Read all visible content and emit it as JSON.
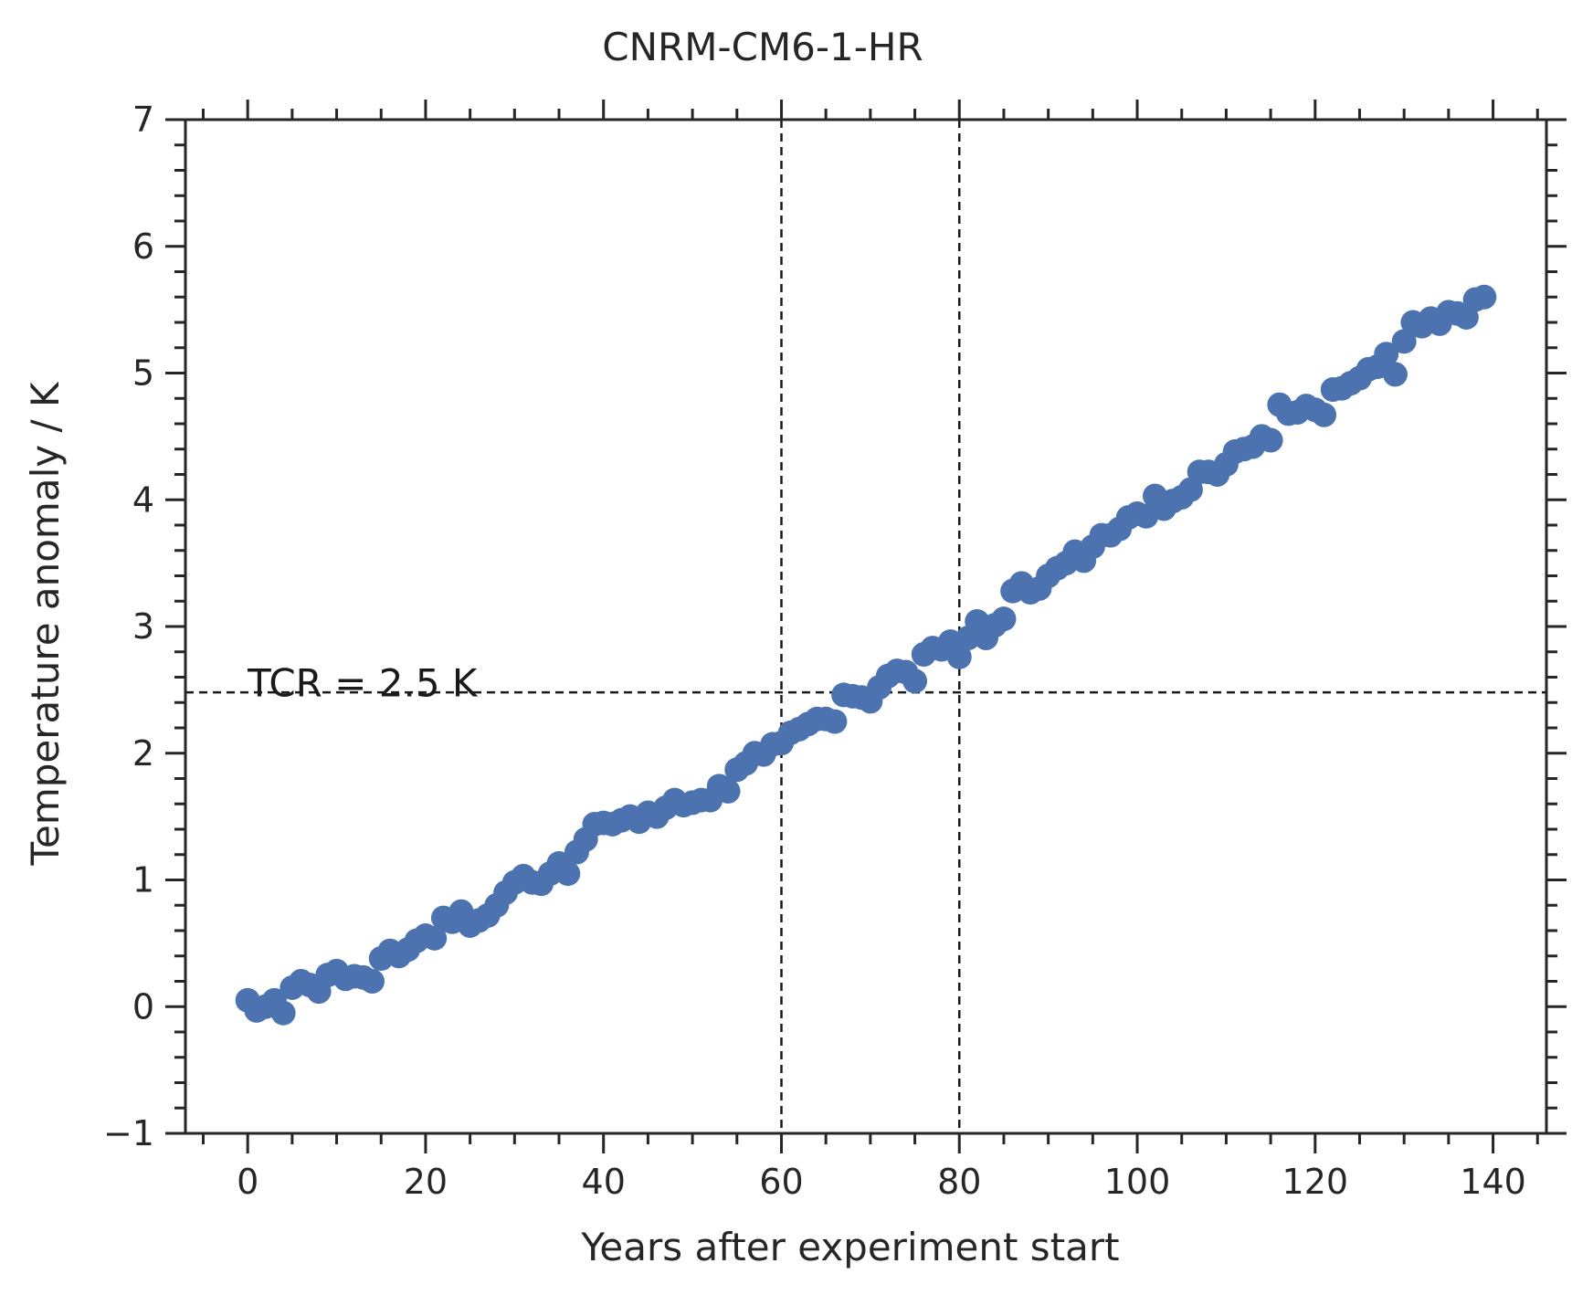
{
  "chart_data": {
    "type": "scatter",
    "title": "CNRM-CM6-1-HR",
    "xlabel": "Years after experiment start",
    "ylabel": "Temperature anomaly / K",
    "xlim": [
      -7,
      146
    ],
    "ylim": [
      -1,
      7
    ],
    "xticks": [
      0,
      20,
      40,
      60,
      80,
      100,
      120,
      140
    ],
    "xtick_labels": [
      "0",
      "20",
      "40",
      "60",
      "80",
      "100",
      "120",
      "140"
    ],
    "yticks": [
      -1,
      0,
      1,
      2,
      3,
      4,
      5,
      6,
      7
    ],
    "ytick_labels": [
      "−1",
      "0",
      "1",
      "2",
      "3",
      "4",
      "5",
      "6",
      "7"
    ],
    "grid": false,
    "marker_color": "#4c72b0",
    "reference_lines": {
      "vertical": [
        60,
        80
      ],
      "horizontal": [
        2.48
      ],
      "color": "#1a1a1a",
      "style": "dashed"
    },
    "annotation": {
      "text": "TCR = 2.5 K",
      "x": 0,
      "y": 2.55
    },
    "series": [
      {
        "x": [
          0,
          1,
          2,
          3,
          4,
          5,
          6,
          7,
          8,
          9,
          10,
          11,
          12,
          13,
          14,
          15,
          16,
          17,
          18,
          19,
          20,
          21,
          22,
          23,
          24,
          25,
          26,
          27,
          28,
          29,
          30,
          31,
          32,
          33,
          34,
          35,
          36,
          37,
          38,
          39,
          40,
          41,
          42,
          43,
          44,
          45,
          46,
          47,
          48,
          49,
          50,
          51,
          52,
          53,
          54,
          55,
          56,
          57,
          58,
          59,
          60,
          61,
          62,
          63,
          64,
          65,
          66,
          67,
          68,
          69,
          70,
          71,
          72,
          73,
          74,
          75,
          76,
          77,
          78,
          79,
          80,
          81,
          82,
          83,
          84,
          85,
          86,
          87,
          88,
          89,
          90,
          91,
          92,
          93,
          94,
          95,
          96,
          97,
          98,
          99,
          100,
          101,
          102,
          103,
          104,
          105,
          106,
          107,
          108,
          109,
          110,
          111,
          112,
          113,
          114,
          115,
          116,
          117,
          118,
          119,
          120,
          121,
          122,
          123,
          124,
          125,
          126,
          127,
          128,
          129,
          130,
          131,
          132,
          133,
          134,
          135,
          136,
          137,
          138,
          139
        ],
        "y": [
          0.05,
          -0.03,
          0.0,
          0.05,
          -0.05,
          0.15,
          0.2,
          0.17,
          0.12,
          0.25,
          0.28,
          0.22,
          0.24,
          0.23,
          0.2,
          0.38,
          0.44,
          0.4,
          0.45,
          0.52,
          0.56,
          0.54,
          0.7,
          0.67,
          0.75,
          0.64,
          0.68,
          0.72,
          0.8,
          0.9,
          0.98,
          1.03,
          0.98,
          0.97,
          1.05,
          1.13,
          1.05,
          1.22,
          1.32,
          1.44,
          1.45,
          1.44,
          1.47,
          1.5,
          1.46,
          1.53,
          1.5,
          1.57,
          1.63,
          1.59,
          1.61,
          1.63,
          1.63,
          1.74,
          1.7,
          1.87,
          1.92,
          2.0,
          1.99,
          2.07,
          2.08,
          2.16,
          2.19,
          2.23,
          2.27,
          2.27,
          2.25,
          2.46,
          2.45,
          2.44,
          2.41,
          2.52,
          2.61,
          2.65,
          2.64,
          2.57,
          2.78,
          2.83,
          2.82,
          2.88,
          2.76,
          2.91,
          3.04,
          2.91,
          3.01,
          3.06,
          3.28,
          3.34,
          3.27,
          3.3,
          3.4,
          3.46,
          3.5,
          3.59,
          3.52,
          3.63,
          3.72,
          3.72,
          3.77,
          3.86,
          3.89,
          3.87,
          4.03,
          3.93,
          3.99,
          4.02,
          4.08,
          4.22,
          4.22,
          4.2,
          4.28,
          4.38,
          4.4,
          4.42,
          4.5,
          4.47,
          4.75,
          4.68,
          4.69,
          4.74,
          4.71,
          4.67,
          4.87,
          4.88,
          4.92,
          4.96,
          5.03,
          5.05,
          5.15,
          4.99,
          5.25,
          5.4,
          5.37,
          5.43,
          5.39,
          5.48,
          5.47,
          5.44,
          5.58,
          5.6
        ]
      }
    ]
  }
}
